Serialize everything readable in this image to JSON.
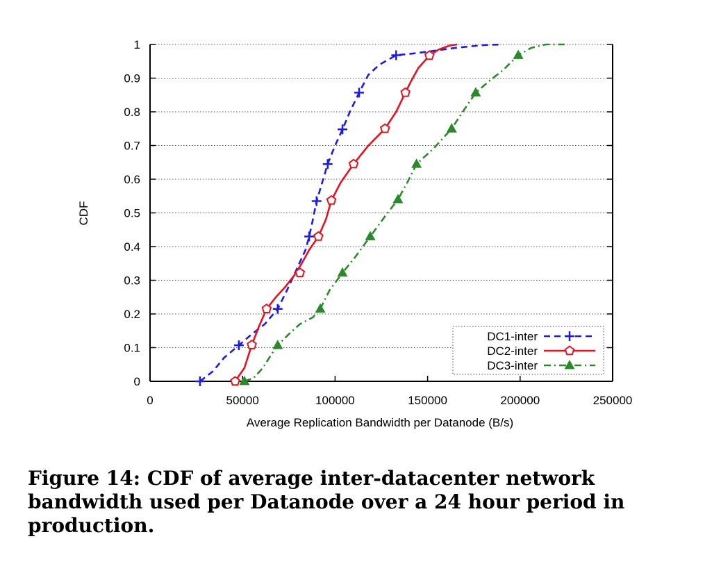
{
  "caption": "Figure 14: CDF of average inter-datacenter network bandwidth used per Datanode over a 24 hour period in production.",
  "chart_data": {
    "type": "line",
    "xlabel": "Average Replication Bandwidth per Datanode (B/s)",
    "ylabel": "CDF",
    "xlim": [
      0,
      250000
    ],
    "ylim": [
      0,
      1
    ],
    "xticks": [
      "0",
      "50000",
      "100000",
      "150000",
      "200000",
      "250000"
    ],
    "yticks": [
      "0",
      "0.1",
      "0.2",
      "0.3",
      "0.4",
      "0.5",
      "0.6",
      "0.7",
      "0.8",
      "0.9",
      "1"
    ],
    "grid": "horizontal dotted",
    "legend_position": "bottom-right",
    "series": [
      {
        "name": "DC1-inter",
        "color": "#1a1aee",
        "dash": "dashed",
        "marker": "plus",
        "x": [
          27000,
          34000,
          40000,
          48000,
          55000,
          62000,
          69000,
          74000,
          79000,
          84000,
          86000,
          88000,
          90000,
          93000,
          96000,
          100000,
          104000,
          108000,
          113000,
          118000,
          124000,
          133000,
          142000,
          152000,
          165000,
          180000,
          190000
        ],
        "y": [
          0.0,
          0.03,
          0.07,
          0.107,
          0.14,
          0.17,
          0.215,
          0.27,
          0.33,
          0.39,
          0.43,
          0.48,
          0.535,
          0.59,
          0.645,
          0.7,
          0.748,
          0.8,
          0.857,
          0.91,
          0.94,
          0.968,
          0.973,
          0.98,
          0.99,
          0.998,
          1.0
        ],
        "markers_x": [
          27000,
          48000,
          69000,
          86000,
          90000,
          96000,
          104000,
          113000,
          133000
        ],
        "markers_y": [
          0.0,
          0.107,
          0.215,
          0.43,
          0.535,
          0.645,
          0.748,
          0.857,
          0.968
        ]
      },
      {
        "name": "DC2-inter",
        "color": "#e8121e",
        "dash": "solid",
        "marker": "pentagon",
        "x": [
          46000,
          51000,
          55000,
          59000,
          63000,
          68000,
          73000,
          78000,
          82000,
          86000,
          91000,
          95000,
          98000,
          103000,
          110000,
          118000,
          127000,
          133000,
          138000,
          141000,
          145000,
          151000,
          156000,
          162000,
          166000
        ],
        "y": [
          0.0,
          0.04,
          0.108,
          0.165,
          0.215,
          0.25,
          0.28,
          0.315,
          0.35,
          0.39,
          0.43,
          0.48,
          0.537,
          0.59,
          0.645,
          0.7,
          0.75,
          0.8,
          0.857,
          0.89,
          0.93,
          0.967,
          0.985,
          0.997,
          1.0
        ],
        "markers_x": [
          46000,
          55000,
          63000,
          81000,
          91000,
          98000,
          110000,
          127000,
          138000,
          151000
        ],
        "markers_y": [
          0.0,
          0.108,
          0.215,
          0.322,
          0.43,
          0.537,
          0.645,
          0.75,
          0.857,
          0.967
        ]
      },
      {
        "name": "DC3-inter",
        "color": "#2a8a2a",
        "dash": "dash-dot",
        "marker": "triangle",
        "x": [
          51000,
          56000,
          61000,
          65000,
          69000,
          75000,
          81000,
          88000,
          92000,
          97000,
          104000,
          111000,
          119000,
          127000,
          134000,
          139000,
          144000,
          153000,
          163000,
          169000,
          176000,
          183000,
          191000,
          199000,
          206000,
          214000,
          224000
        ],
        "y": [
          0.0,
          0.01,
          0.04,
          0.075,
          0.107,
          0.14,
          0.17,
          0.19,
          0.215,
          0.27,
          0.322,
          0.37,
          0.43,
          0.49,
          0.54,
          0.59,
          0.645,
          0.69,
          0.75,
          0.8,
          0.857,
          0.89,
          0.925,
          0.968,
          0.99,
          1.0,
          1.0
        ],
        "markers_x": [
          51000,
          69000,
          92000,
          104000,
          119000,
          134000,
          144000,
          163000,
          176000,
          199000
        ],
        "markers_y": [
          0.0,
          0.107,
          0.215,
          0.322,
          0.43,
          0.54,
          0.645,
          0.75,
          0.857,
          0.968
        ]
      }
    ]
  }
}
